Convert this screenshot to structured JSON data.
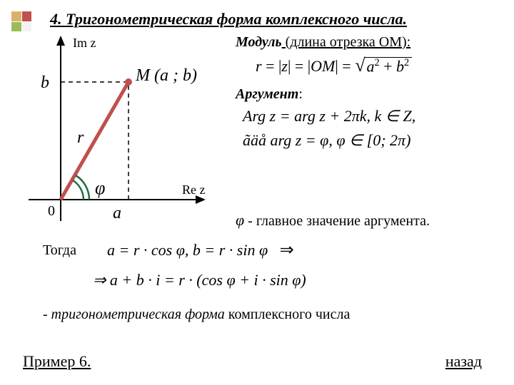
{
  "bullet_colors": [
    "#d9b26a",
    "#c0504d",
    "#9bbb59",
    "#f2f2f2"
  ],
  "title": "4.  Тригонометрическая форма комплексного числа.",
  "diagram": {
    "im_label": "Im z",
    "re_label": "Re z",
    "origin_label": "0",
    "a_label": "a",
    "b_label": "b",
    "r_label": "r",
    "phi_label": "φ",
    "point_label": "M (a ; b)",
    "axis_color": "#000000",
    "vector_color": "#c0504d",
    "arc_color": "#1f6e43",
    "dashed_color": "#000000",
    "point_fill": "#c0504d"
  },
  "modulus_label": "Модуль",
  "modulus_rest": " (длина отрезка ОМ):",
  "modulus_formula_parts": {
    "r": "r",
    "z": "z",
    "om": "OM",
    "a": "a",
    "b": "b"
  },
  "argument_label": "Аргумент",
  "arg_formula": "Arg z = arg z + 2πk,   k ∈ Z,",
  "arg_where": "ãäå  arg z = φ,   φ ∈ [0; 2π)",
  "phi_meaning_phi": "φ",
  "phi_meaning_rest": " - главное значение аргумента.",
  "togda": "Тогда",
  "ab_formula": "a = r · cos φ,   b = r · sin φ",
  "impl_formula": "⇒ a + b · i = r · (cos φ + i · sin φ)",
  "trig_form_italic": "- тригонометрическая форма",
  "trig_form_rest": " комплексного числа",
  "example_link": "Пример 6.",
  "back_link": "назад"
}
